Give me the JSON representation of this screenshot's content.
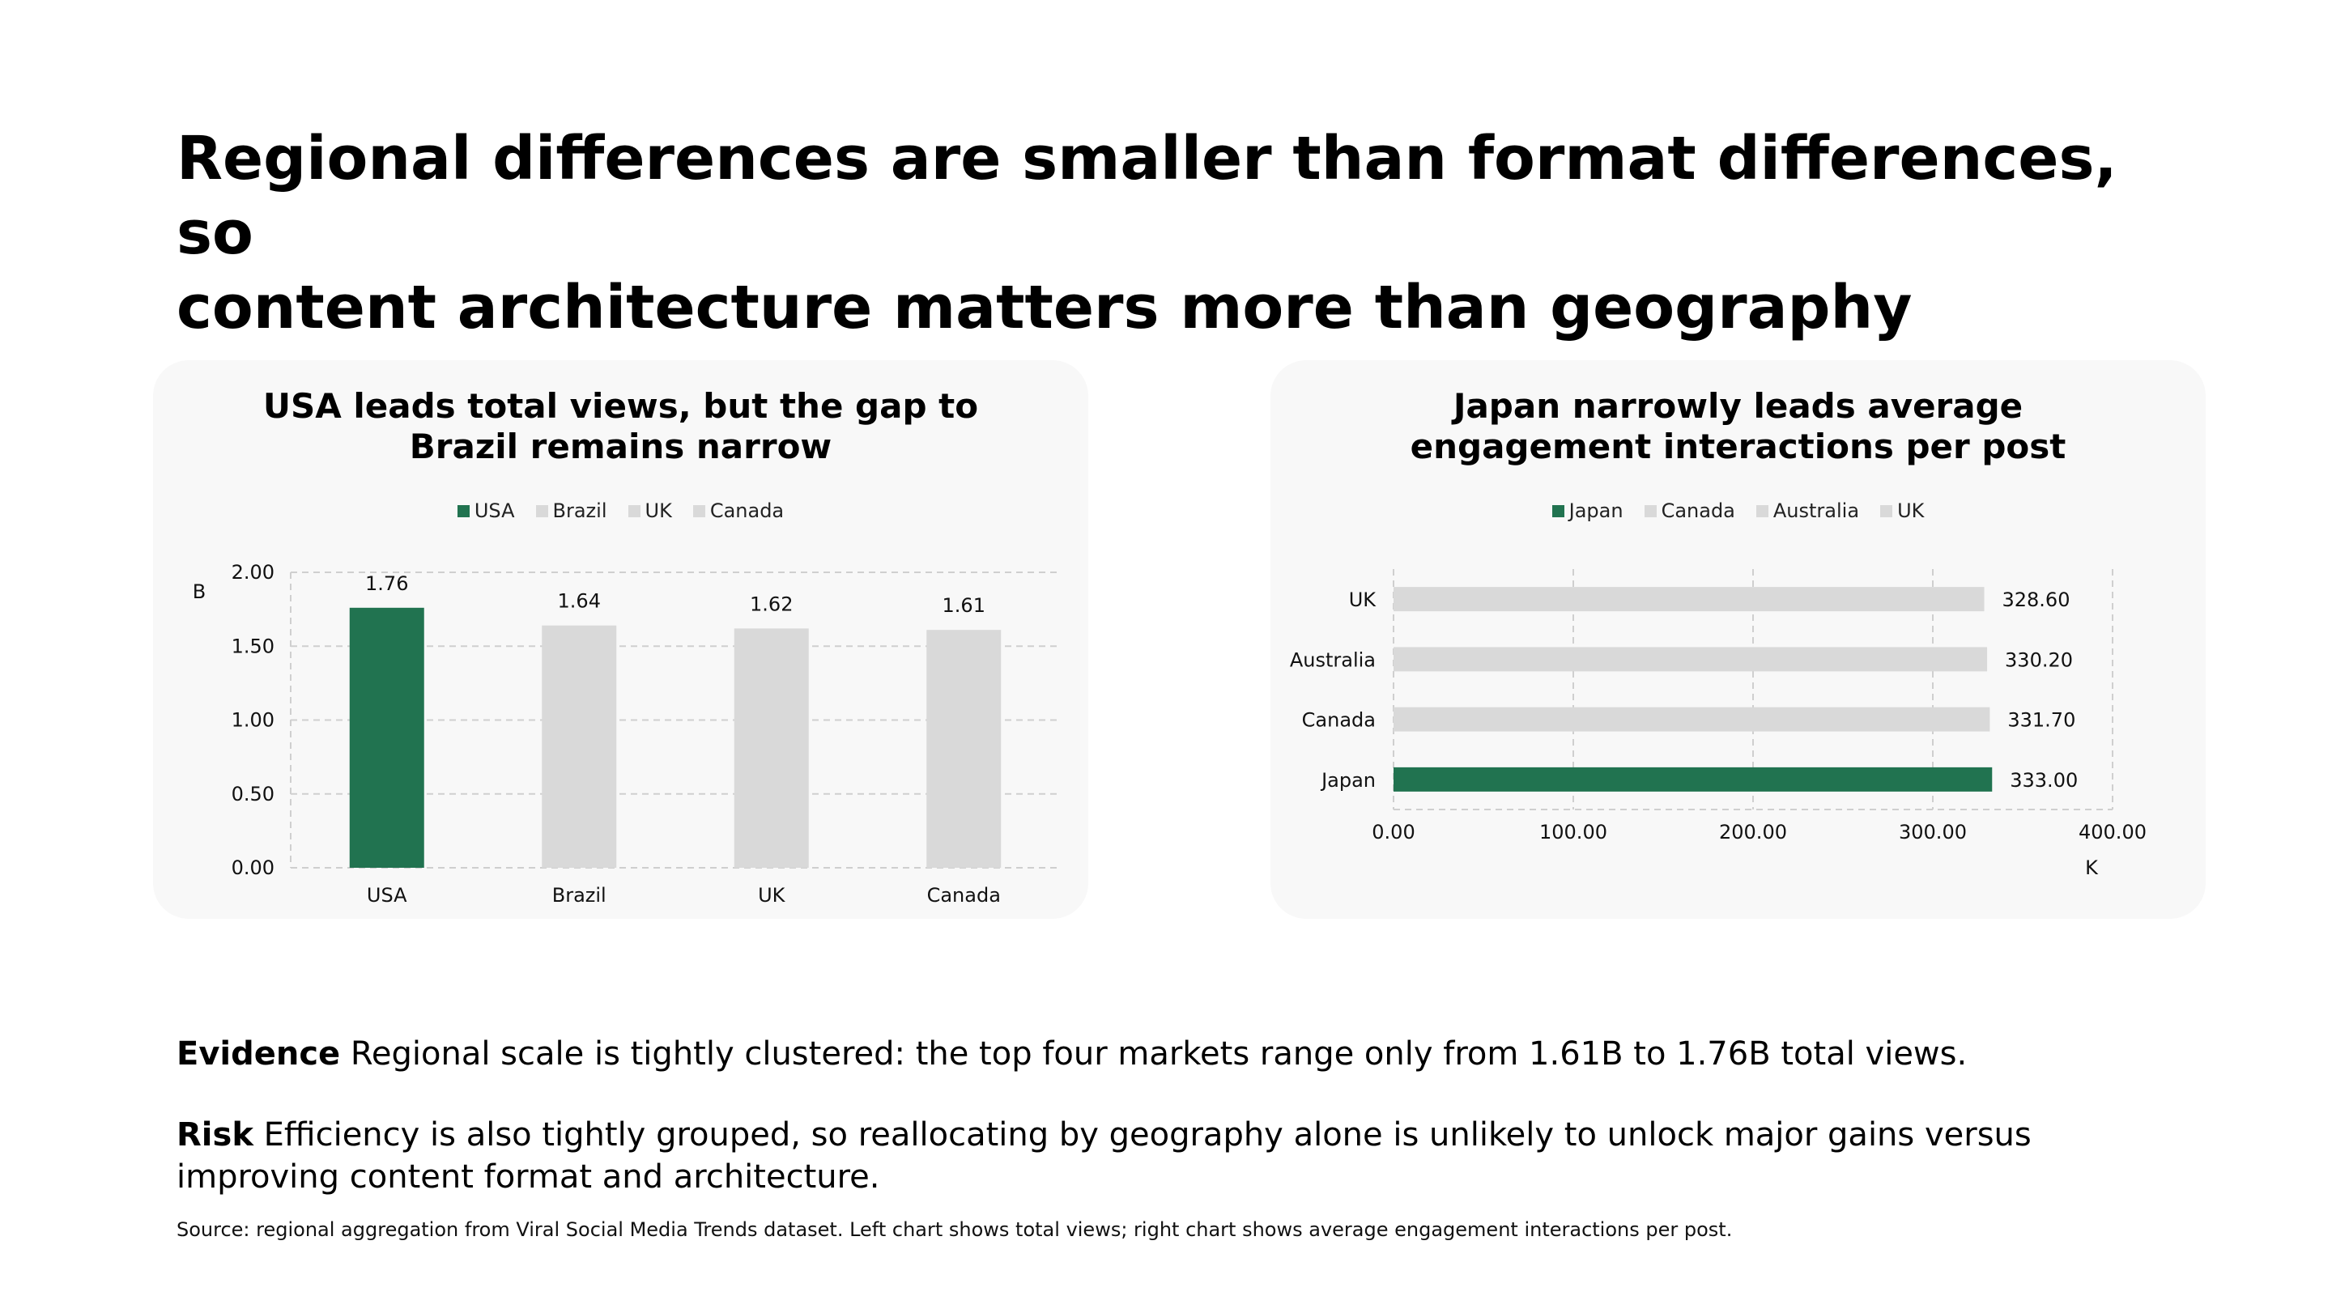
{
  "headline": {
    "line1": "Regional differences are smaller than format differences, so",
    "line2": "content architecture matters more than geography"
  },
  "colors": {
    "highlight": "#217350",
    "muted": "#d9d9d9",
    "card_bg": "#f8f8f8",
    "grid": "#cfcfcf"
  },
  "chart_data": [
    {
      "type": "bar",
      "title": [
        "USA leads total views, but the gap to",
        "Brazil remains narrow"
      ],
      "categories": [
        "USA",
        "Brazil",
        "UK",
        "Canada"
      ],
      "values": [
        1.76,
        1.64,
        1.62,
        1.61
      ],
      "value_labels": [
        "1.76",
        "1.64",
        "1.62",
        "1.61"
      ],
      "legend": [
        "USA",
        "Brazil",
        "UK",
        "Canada"
      ],
      "legend_position": "top",
      "highlight": "USA",
      "unit_label": "B",
      "ylim": [
        0,
        2.0
      ],
      "y_ticks": [
        0.0,
        0.5,
        1.0,
        1.5,
        2.0
      ],
      "y_tick_labels": [
        "0.00",
        "0.50",
        "1.00",
        "1.50",
        "2.00"
      ],
      "grid": true
    },
    {
      "type": "bar",
      "orientation": "horizontal",
      "title": [
        "Japan narrowly leads average",
        "engagement interactions per post"
      ],
      "categories": [
        "UK",
        "Australia",
        "Canada",
        "Japan"
      ],
      "values": [
        328.6,
        330.2,
        331.7,
        333.0
      ],
      "value_labels": [
        "328.60",
        "330.20",
        "331.70",
        "333.00"
      ],
      "legend": [
        "Japan",
        "Canada",
        "Australia",
        "UK"
      ],
      "legend_position": "top",
      "highlight": "Japan",
      "unit_label": "K",
      "xlim": [
        0,
        400
      ],
      "x_ticks": [
        0,
        100,
        200,
        300,
        400
      ],
      "x_tick_labels": [
        "0.00",
        "100.00",
        "200.00",
        "300.00",
        "400.00"
      ],
      "grid": true
    }
  ],
  "evidence": {
    "label": "Evidence",
    "text": " Regional scale is tightly clustered: the top four markets range only from 1.61B to 1.76B total views."
  },
  "risk": {
    "label": "Risk",
    "text": " Efficiency is also tightly grouped, so reallocating by geography alone is unlikely to unlock major gains versus improving content format and architecture."
  },
  "source": "Source: regional aggregation from Viral Social Media Trends dataset. Left chart shows total views; right chart shows average engagement interactions per post."
}
